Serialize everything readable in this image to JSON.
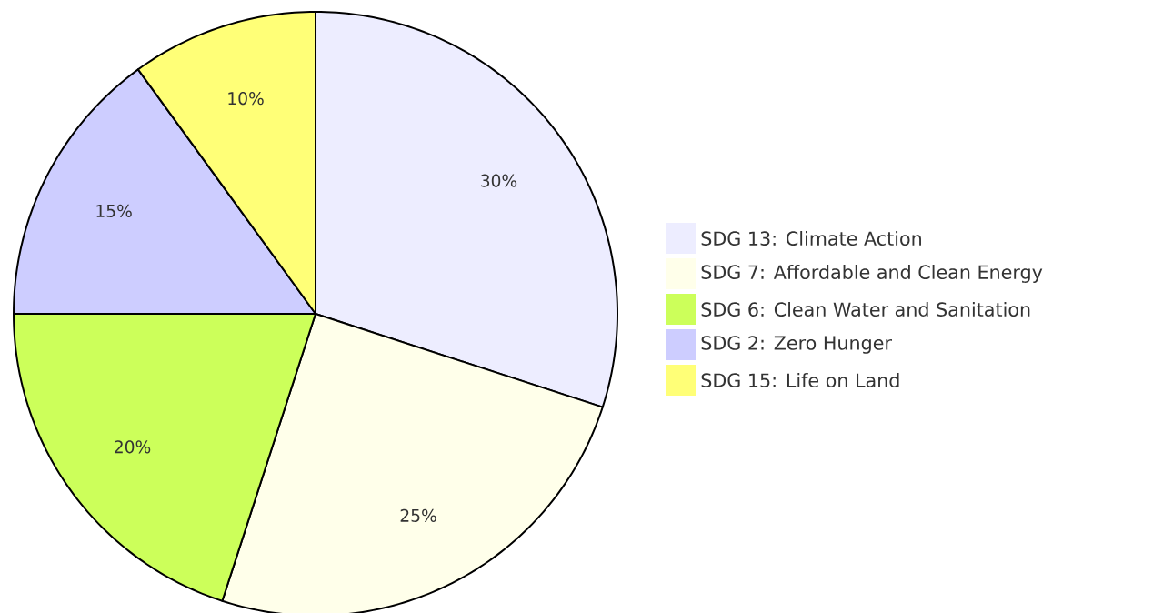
{
  "chart_data": {
    "type": "pie",
    "categories": [
      "SDG 13: Climate Action",
      "SDG 7: Affordable and Clean Energy",
      "SDG 6: Clean Water and Sanitation",
      "SDG 2: Zero Hunger",
      "SDG 15: Life on Land"
    ],
    "values": [
      30,
      25,
      20,
      15,
      10
    ],
    "value_labels": [
      "30%",
      "25%",
      "20%",
      "15%",
      "10%"
    ],
    "colors": [
      "#ededff",
      "#ffffea",
      "#ccff5a",
      "#cdcdff",
      "#ffff77"
    ],
    "legend": "right"
  }
}
